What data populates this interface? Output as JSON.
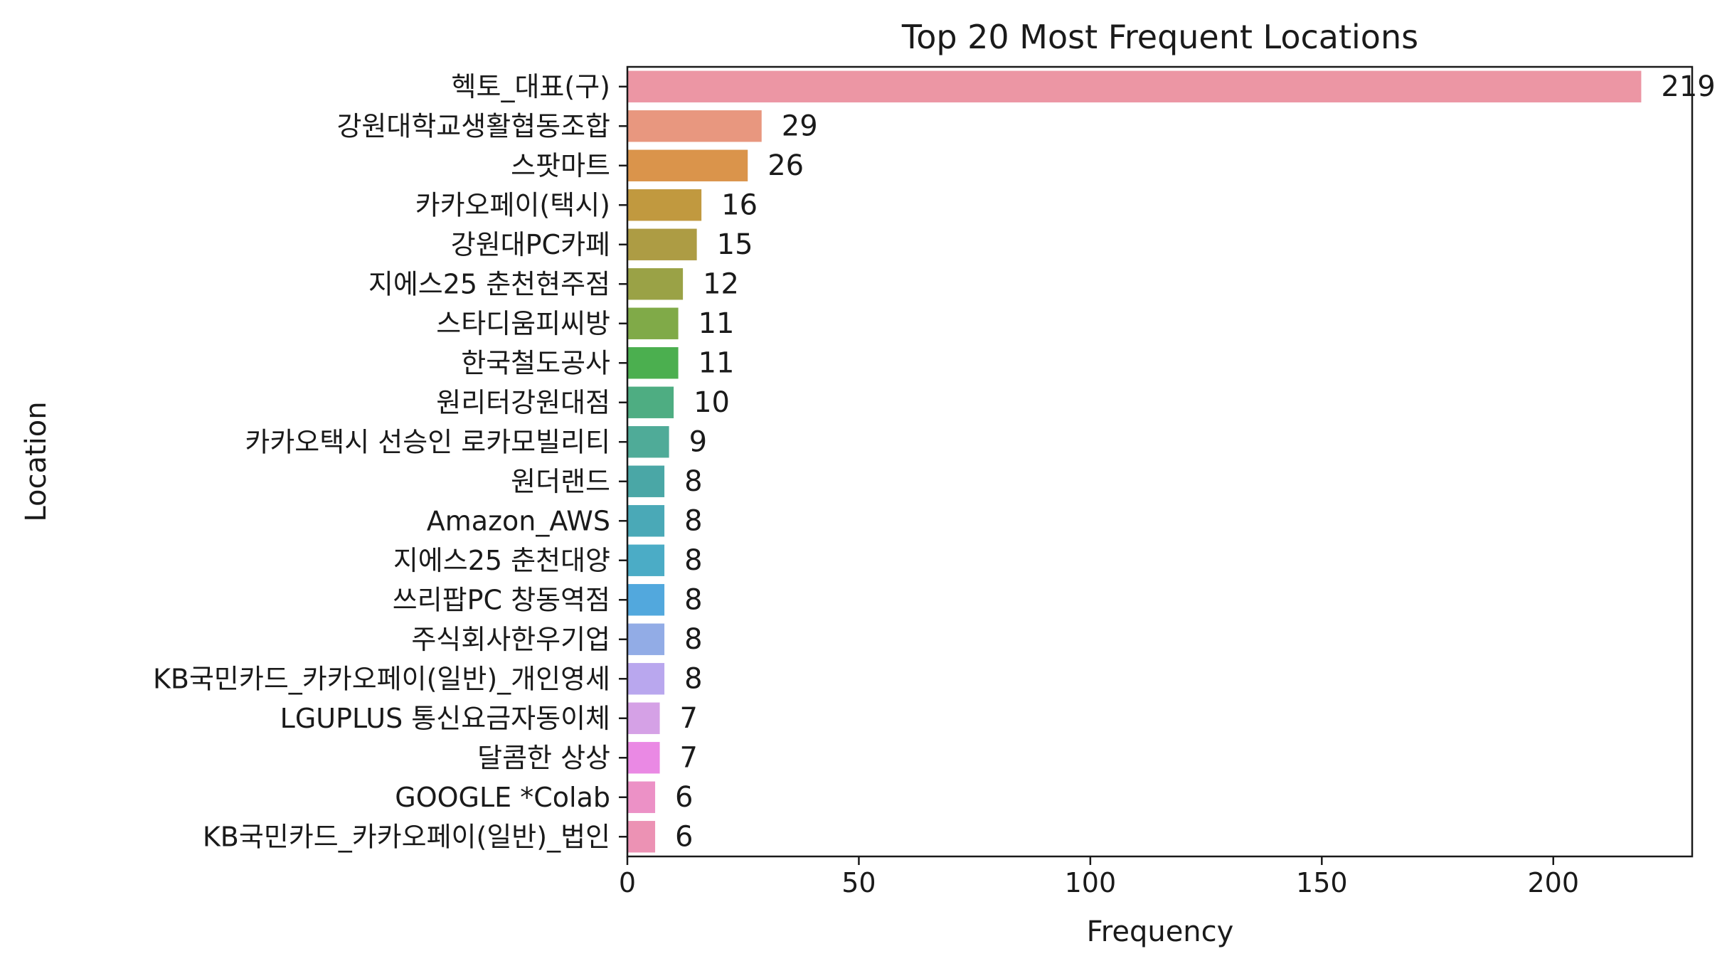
{
  "chart_data": {
    "type": "bar",
    "orientation": "horizontal",
    "title": "Top 20 Most Frequent Locations",
    "xlabel": "Frequency",
    "ylabel": "Location",
    "xlim": [
      0,
      230
    ],
    "xticks": [
      0,
      50,
      100,
      150,
      200
    ],
    "grid": false,
    "legend": "none",
    "categories": [
      "헥토_대표(구)",
      "강원대학교생활협동조합",
      "스팟마트",
      "카카오페이(택시)",
      "강원대PC카페",
      "지에스25 춘천현주점",
      "스타디움피씨방",
      "한국철도공사",
      "원리터강원대점",
      "카카오택시 선승인 로카모빌리티",
      "원더랜드",
      "Amazon_AWS",
      "지에스25 춘천대양",
      "쓰리팝PC 창동역점",
      "주식회사한우기업",
      "KB국민카드_카카오페이(일반)_개인영세",
      "LGUPLUS 통신요금자동이체",
      "달콤한 상상",
      "GOOGLE *Colab",
      "KB국민카드_카카오페이(일반)_법인"
    ],
    "values": [
      219,
      29,
      26,
      16,
      15,
      12,
      11,
      11,
      10,
      9,
      8,
      8,
      8,
      8,
      8,
      8,
      7,
      7,
      6,
      6
    ],
    "colors": [
      "#ec96a4",
      "#e8977f",
      "#da944b",
      "#c1993f",
      "#ad9c44",
      "#9aa246",
      "#80aa48",
      "#4baf4f",
      "#4ead82",
      "#4fab98",
      "#4aa7a6",
      "#4aa9b7",
      "#4bacc6",
      "#52a8dd",
      "#92ace6",
      "#b9a7ee",
      "#d5a1e6",
      "#ea89e4",
      "#ec91c6",
      "#ec92b4"
    ]
  }
}
